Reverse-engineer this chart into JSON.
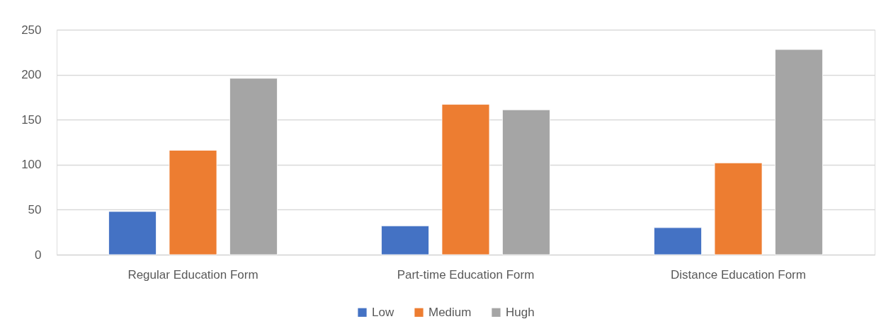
{
  "chart_data": {
    "type": "bar",
    "categories": [
      "Regular Education Form",
      "Part-time Education Form",
      "Distance Education Form"
    ],
    "series": [
      {
        "name": "Low",
        "color": "#4472c4",
        "values": [
          48,
          32,
          30
        ]
      },
      {
        "name": "Medium",
        "color": "#ed7d31",
        "values": [
          116,
          167,
          102
        ]
      },
      {
        "name": "Hugh",
        "color": "#a5a5a5",
        "values": [
          196,
          161,
          228
        ]
      }
    ],
    "ylim": [
      0,
      250
    ],
    "yticks": [
      0,
      50,
      100,
      150,
      200,
      250
    ],
    "grid": "y",
    "legend": "bottom"
  }
}
